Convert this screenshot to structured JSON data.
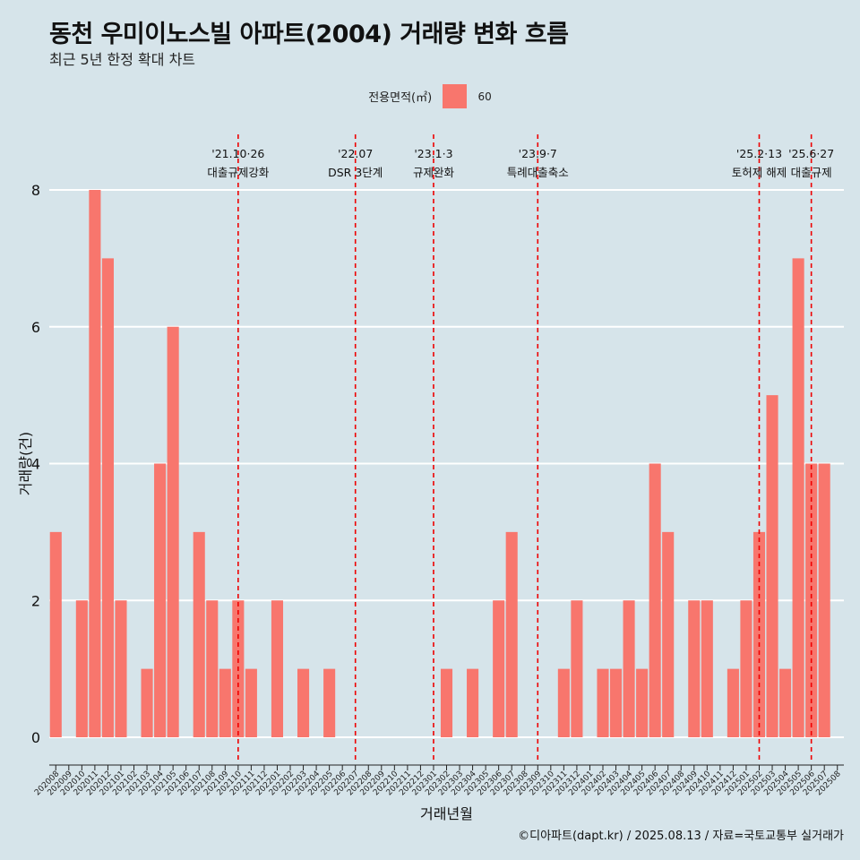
{
  "title": "동천 우미이노스빌 아파트(2004) 거래량 변화 흐름",
  "subtitle": "최근 5년 한정 확대 차트",
  "legend": {
    "title": "전용면적(㎡)",
    "label": "60",
    "color": "#f8766d"
  },
  "caption": "©디아파트(dapt.kr) / 2025.08.13 / 자료=국토교통부 실거래가",
  "chart_data": {
    "type": "bar",
    "xlabel": "거래년월",
    "ylabel": "거래량(건)",
    "ylim": [
      0,
      8
    ],
    "yticks": [
      0,
      2,
      4,
      6,
      8
    ],
    "grid": true,
    "legend_position": "top",
    "bar_color": "#f8766d",
    "categories": [
      "202008",
      "202009",
      "202010",
      "202011",
      "202012",
      "202101",
      "202102",
      "202103",
      "202104",
      "202105",
      "202106",
      "202107",
      "202108",
      "202109",
      "202110",
      "202111",
      "202112",
      "202201",
      "202202",
      "202203",
      "202204",
      "202205",
      "202206",
      "202207",
      "202208",
      "202209",
      "202210",
      "202211",
      "202212",
      "202301",
      "202302",
      "202303",
      "202304",
      "202305",
      "202306",
      "202307",
      "202308",
      "202309",
      "202310",
      "202311",
      "202312",
      "202401",
      "202402",
      "202403",
      "202404",
      "202405",
      "202406",
      "202407",
      "202408",
      "202409",
      "202410",
      "202411",
      "202412",
      "202501",
      "202502",
      "202503",
      "202504",
      "202505",
      "202506",
      "202507",
      "202508"
    ],
    "series": [
      {
        "name": "60",
        "values": [
          3,
          0,
          2,
          8,
          7,
          2,
          0,
          1,
          4,
          6,
          0,
          3,
          2,
          1,
          2,
          1,
          0,
          2,
          0,
          1,
          0,
          1,
          0,
          0,
          0,
          0,
          0,
          0,
          0,
          0,
          1,
          0,
          1,
          0,
          2,
          3,
          0,
          0,
          0,
          1,
          2,
          0,
          1,
          1,
          2,
          1,
          4,
          3,
          0,
          2,
          2,
          0,
          1,
          2,
          3,
          5,
          1,
          7,
          4,
          4,
          0
        ]
      }
    ],
    "annotations": [
      {
        "x": "202110",
        "line1": "'21.10·26",
        "line2": "대출규제강화"
      },
      {
        "x": "202207",
        "line1": "'22.07",
        "line2": "DSR 3단계"
      },
      {
        "x": "202301",
        "line1": "'23.1·3",
        "line2": "규제완화"
      },
      {
        "x": "202309",
        "line1": "'23.9·7",
        "line2": "특례대출축소"
      },
      {
        "x": "202502",
        "line1": "'25.2·13",
        "line2": "토허제 해제"
      },
      {
        "x": "202506",
        "line1": "'25.6·27",
        "line2": "대출규제"
      }
    ]
  }
}
